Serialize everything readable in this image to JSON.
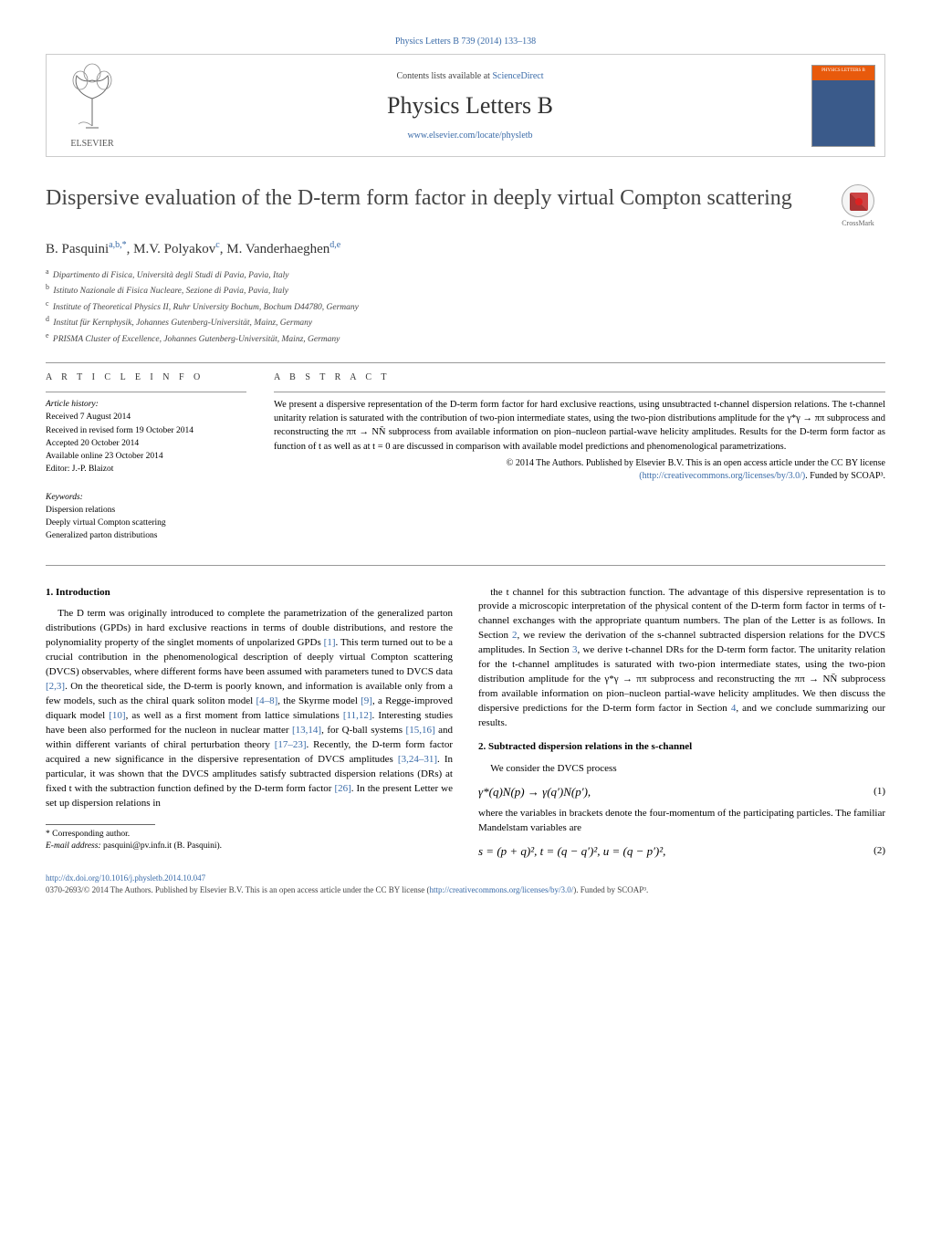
{
  "top_citation": "Physics Letters B 739 (2014) 133–138",
  "header": {
    "contents_prefix": "Contents lists available at ",
    "contents_link": "ScienceDirect",
    "journal": "Physics Letters B",
    "journal_url": "www.elsevier.com/locate/physletb",
    "publisher": "ELSEVIER",
    "cover_label": "PHYSICS LETTERS B"
  },
  "crossmark": "CrossMark",
  "title": "Dispersive evaluation of the D-term form factor in deeply virtual Compton scattering",
  "authors_html": "B. Pasquini",
  "authors": [
    {
      "name": "B. Pasquini",
      "marks": "a,b,*"
    },
    {
      "name": "M.V. Polyakov",
      "marks": "c"
    },
    {
      "name": "M. Vanderhaeghen",
      "marks": "d,e"
    }
  ],
  "affiliations": [
    {
      "mark": "a",
      "text": "Dipartimento di Fisica, Università degli Studi di Pavia, Pavia, Italy"
    },
    {
      "mark": "b",
      "text": "Istituto Nazionale di Fisica Nucleare, Sezione di Pavia, Pavia, Italy"
    },
    {
      "mark": "c",
      "text": "Institute of Theoretical Physics II, Ruhr University Bochum, Bochum D44780, Germany"
    },
    {
      "mark": "d",
      "text": "Institut für Kernphysik, Johannes Gutenberg-Universität, Mainz, Germany"
    },
    {
      "mark": "e",
      "text": "PRISMA Cluster of Excellence, Johannes Gutenberg-Universität, Mainz, Germany"
    }
  ],
  "info": {
    "header": "A R T I C L E   I N F O",
    "history_label": "Article history:",
    "history": [
      "Received 7 August 2014",
      "Received in revised form 19 October 2014",
      "Accepted 20 October 2014",
      "Available online 23 October 2014",
      "Editor: J.-P. Blaizot"
    ],
    "keywords_label": "Keywords:",
    "keywords": [
      "Dispersion relations",
      "Deeply virtual Compton scattering",
      "Generalized parton distributions"
    ]
  },
  "abstract": {
    "header": "A B S T R A C T",
    "body": "We present a dispersive representation of the D-term form factor for hard exclusive reactions, using unsubtracted t-channel dispersion relations. The t-channel unitarity relation is saturated with the contribution of two-pion intermediate states, using the two-pion distributions amplitude for the γ*γ → ππ subprocess and reconstructing the ππ → NN̄ subprocess from available information on pion–nucleon partial-wave helicity amplitudes. Results for the D-term form factor as function of t as well as at t = 0 are discussed in comparison with available model predictions and phenomenological parametrizations.",
    "copyright1": "© 2014 The Authors. Published by Elsevier B.V. This is an open access article under the CC BY license",
    "copyright_link": "(http://creativecommons.org/licenses/by/3.0/)",
    "copyright_tail": ". Funded by SCOAP³."
  },
  "sections": {
    "s1_heading": "1. Introduction",
    "s1_body": "The D term was originally introduced to complete the parametrization of the generalized parton distributions (GPDs) in hard exclusive reactions in terms of double distributions, and restore the polynomiality property of the singlet moments of unpolarized GPDs <span class=\"ref\">[1]</span>. This term turned out to be a crucial contribution in the phenomenological description of deeply virtual Compton scattering (DVCS) observables, where different forms have been assumed with parameters tuned to DVCS data <span class=\"ref\">[2,3]</span>. On the theoretical side, the D-term is poorly known, and information is available only from a few models, such as the chiral quark soliton model <span class=\"ref\">[4–8]</span>, the Skyrme model <span class=\"ref\">[9]</span>, a Regge-improved diquark model <span class=\"ref\">[10]</span>, as well as a first moment from lattice simulations <span class=\"ref\">[11,12]</span>. Interesting studies have been also performed for the nucleon in nuclear matter <span class=\"ref\">[13,14]</span>, for Q-ball systems <span class=\"ref\">[15,16]</span> and within different variants of chiral perturbation theory <span class=\"ref\">[17–23]</span>. Recently, the D-term form factor acquired a new significance in the dispersive representation of DVCS amplitudes <span class=\"ref\">[3,24–31]</span>. In particular, it was shown that the DVCS amplitudes satisfy subtracted dispersion relations (DRs) at fixed t with the subtraction function defined by the D-term form factor <span class=\"ref\">[26]</span>. In the present Letter we set up dispersion relations in",
    "s1_col2": "the t channel for this subtraction function. The advantage of this dispersive representation is to provide a microscopic interpretation of the physical content of the D-term form factor in terms of t-channel exchanges with the appropriate quantum numbers. The plan of the Letter is as follows. In Section <span class=\"ref\">2</span>, we review the derivation of the s-channel subtracted dispersion relations for the DVCS amplitudes. In Section <span class=\"ref\">3</span>, we derive t-channel DRs for the D-term form factor. The unitarity relation for the t-channel amplitudes is saturated with two-pion intermediate states, using the two-pion distribution amplitude for the γ*γ → ππ subprocess and reconstructing the ππ → NN̄ subprocess from available information on pion–nucleon partial-wave helicity amplitudes. We then discuss the dispersive predictions for the D-term form factor in Section <span class=\"ref\">4</span>, and we conclude summarizing our results.",
    "s2_heading": "2. Subtracted dispersion relations in the s-channel",
    "s2_intro": "We consider the DVCS process",
    "eq1": "γ*(q)N(p) → γ(q′)N(p′),",
    "eq1_num": "(1)",
    "s2_after1": "where the variables in brackets denote the four-momentum of the participating particles. The familiar Mandelstam variables are",
    "eq2": "s = (p + q)²,      t = (q − q′)²,      u = (q − p′)²,",
    "eq2_num": "(2)"
  },
  "footnotes": {
    "corr": "* Corresponding author.",
    "email_label": "E-mail address: ",
    "email": "pasquini@pv.infn.it",
    "email_tail": " (B. Pasquini)."
  },
  "bottom": {
    "doi": "http://dx.doi.org/10.1016/j.physletb.2014.10.047",
    "line": "0370-2693/© 2014 The Authors. Published by Elsevier B.V. This is an open access article under the CC BY license (",
    "license": "http://creativecommons.org/licenses/by/3.0/",
    "tail": "). Funded by SCOAP³."
  },
  "colors": {
    "link": "#3a6ba8",
    "orange": "#e85a0c",
    "cover_blue": "#3a5a8a",
    "rule": "#999999"
  }
}
